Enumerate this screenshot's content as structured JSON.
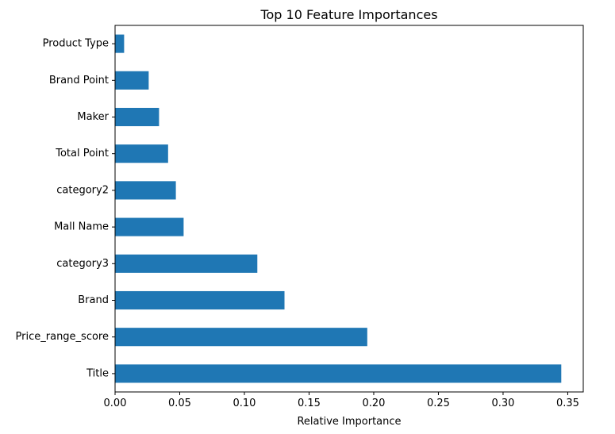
{
  "chart_data": {
    "type": "bar",
    "orientation": "horizontal",
    "title": "Top 10 Feature Importances",
    "xlabel": "Relative Importance",
    "ylabel": "",
    "categories": [
      "Title",
      "Price_range_score",
      "Brand",
      "category3",
      "Mall Name",
      "category2",
      "Total Point",
      "Maker",
      "Brand Point",
      "Product Type"
    ],
    "values": [
      0.345,
      0.195,
      0.131,
      0.11,
      0.053,
      0.047,
      0.041,
      0.034,
      0.026,
      0.007
    ],
    "xlim": [
      0,
      0.362
    ],
    "x_ticks": [
      0.0,
      0.05,
      0.1,
      0.15,
      0.2,
      0.25,
      0.3,
      0.35
    ],
    "x_tick_labels": [
      "0.00",
      "0.05",
      "0.10",
      "0.15",
      "0.20",
      "0.25",
      "0.30",
      "0.35"
    ],
    "bar_color": "#1f77b4",
    "grid": false,
    "legend": "none"
  }
}
